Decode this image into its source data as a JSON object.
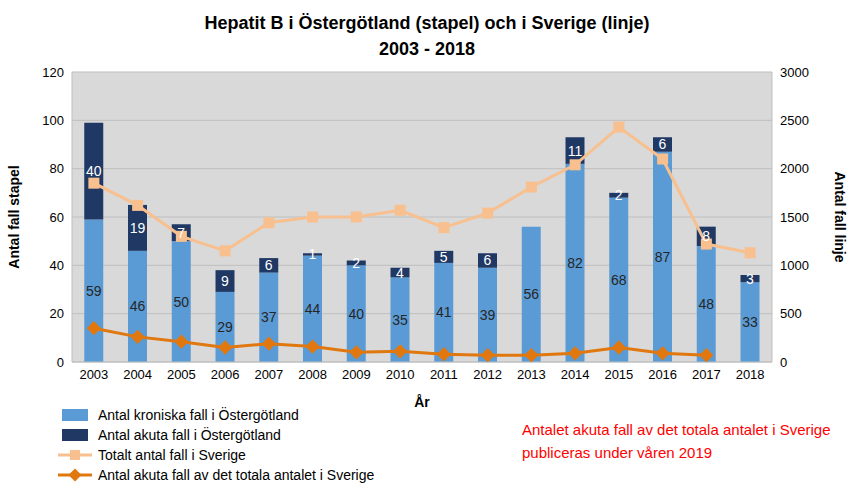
{
  "chart_data": {
    "type": "bar",
    "title": "Hepatit B i Östergötland (stapel) och i Sverige (linje)",
    "subtitle": "2003 - 2018",
    "x_label": "År",
    "y_label": "Antal fall stapel",
    "y2_label": "Antal fall linje",
    "categories": [
      "2003",
      "2004",
      "2005",
      "2006",
      "2007",
      "2008",
      "2009",
      "2010",
      "2011",
      "2012",
      "2013",
      "2014",
      "2015",
      "2016",
      "2017",
      "2018"
    ],
    "stacked": true,
    "grid": true,
    "legend": "bottom left",
    "ylim": [
      0,
      120
    ],
    "yticks": [
      0,
      20,
      40,
      60,
      80,
      100,
      120
    ],
    "y2lim": [
      0,
      3000
    ],
    "y2ticks": [
      0,
      500,
      1000,
      1500,
      2000,
      2500,
      3000
    ],
    "annotations": [
      "Antalet akuta fall av det totala antalet i Sverige publiceras under våren 2019"
    ],
    "series": [
      {
        "name": "Antal kroniska fall i Östergötland",
        "type": "bar",
        "color": "#5b9bd5",
        "data_labels": true,
        "values": [
          59,
          46,
          50,
          29,
          37,
          44,
          40,
          35,
          41,
          39,
          56,
          82,
          68,
          87,
          48,
          33
        ]
      },
      {
        "name": "Antal akuta fall i Östergötland",
        "type": "bar",
        "color": "#1f3864",
        "data_labels": true,
        "values": [
          40,
          19,
          7,
          9,
          6,
          1,
          2,
          4,
          5,
          6,
          0,
          11,
          2,
          6,
          8,
          3
        ]
      },
      {
        "name": "Totalt antal fall i Sverige",
        "type": "line",
        "axis": "y2",
        "color": "#f8c08e",
        "marker": "square",
        "data_labels": false,
        "values": [
          1850,
          1620,
          1300,
          1150,
          1440,
          1500,
          1500,
          1570,
          1390,
          1540,
          1810,
          2040,
          2430,
          2100,
          1220,
          1130
        ]
      },
      {
        "name": "Antal akuta fall av det totala antalet i Sverige",
        "type": "line",
        "axis": "y2",
        "color": "#e0780f",
        "marker": "diamond",
        "data_labels": false,
        "values": [
          350,
          260,
          210,
          150,
          190,
          160,
          100,
          110,
          80,
          70,
          70,
          90,
          150,
          90,
          70,
          null
        ]
      }
    ]
  }
}
